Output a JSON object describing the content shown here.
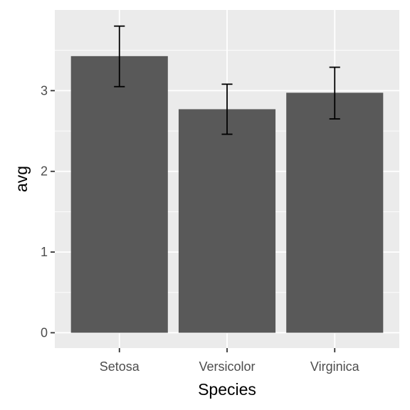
{
  "chart_data": {
    "type": "bar",
    "categories": [
      "Setosa",
      "Versicolor",
      "Virginica"
    ],
    "values": [
      3.428,
      2.77,
      2.974
    ],
    "error_bars": [
      {
        "lower": 3.05,
        "upper": 3.8
      },
      {
        "lower": 2.46,
        "upper": 3.08
      },
      {
        "lower": 2.65,
        "upper": 3.29
      }
    ],
    "xlabel": "Species",
    "ylabel": "avg",
    "ylim": [
      -0.19,
      4.0
    ],
    "yticks": [
      0,
      1,
      2,
      3
    ],
    "ytick_labels": [
      "0",
      "1",
      "2",
      "3"
    ],
    "grid": true,
    "colors": {
      "panel_background": "#ebebeb",
      "gridline": "#ffffff",
      "bar_fill": "#595959",
      "error_bar": "#000000",
      "tick_text": "#4d4d4d",
      "tick_mark": "#333333",
      "axis_title": "#000000"
    }
  }
}
